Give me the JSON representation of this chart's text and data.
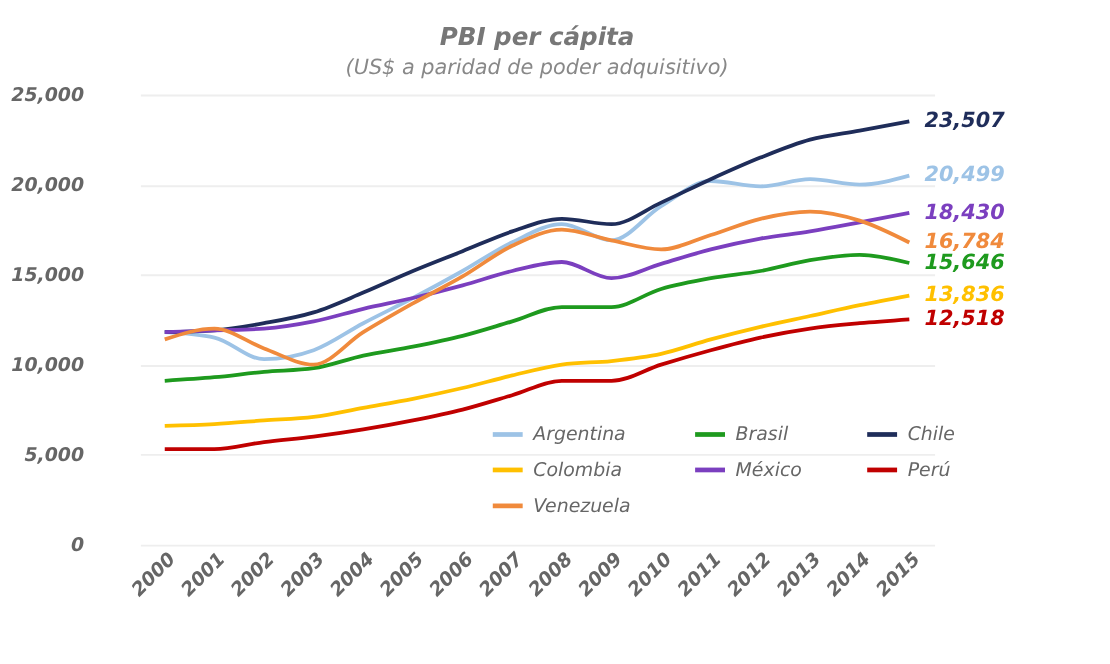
{
  "chart_data": {
    "type": "line",
    "title": "PBI per cápita",
    "subtitle": "(US$ a paridad de poder adquisitivo)",
    "categories": [
      "2000",
      "2001",
      "2002",
      "2003",
      "2004",
      "2005",
      "2006",
      "2007",
      "2008",
      "2009",
      "2010",
      "2011",
      "2012",
      "2013",
      "2014",
      "2015"
    ],
    "series": [
      {
        "name": "Argentina",
        "color": "#9dc3e6",
        "values": [
          11800,
          11500,
          10300,
          10800,
          12300,
          13700,
          15200,
          16800,
          17800,
          16900,
          18800,
          20200,
          19900,
          20300,
          20000,
          20499
        ],
        "value_labels": [
          null,
          null,
          null,
          null,
          null,
          null,
          null,
          null,
          null,
          null,
          null,
          null,
          null,
          null,
          null,
          "20,499"
        ]
      },
      {
        "name": "Brasil",
        "color": "#1e9a1e",
        "values": [
          9100,
          9300,
          9600,
          9800,
          10500,
          11000,
          11600,
          12400,
          13200,
          13200,
          14200,
          14800,
          15200,
          15800,
          16100,
          15646
        ],
        "value_labels": [
          null,
          null,
          null,
          null,
          null,
          null,
          null,
          null,
          null,
          null,
          null,
          null,
          null,
          null,
          null,
          "15,646"
        ]
      },
      {
        "name": "Chile",
        "color": "#1f2d5a",
        "values": [
          11800,
          11900,
          12300,
          12900,
          14000,
          15200,
          16300,
          17400,
          18100,
          17800,
          19000,
          20300,
          21500,
          22500,
          23000,
          23507
        ],
        "value_labels": [
          null,
          null,
          null,
          null,
          null,
          null,
          null,
          null,
          null,
          null,
          null,
          null,
          null,
          null,
          null,
          "23,507"
        ]
      },
      {
        "name": "Colombia",
        "color": "#ffc000",
        "values": [
          6600,
          6700,
          6900,
          7100,
          7600,
          8100,
          8700,
          9400,
          10000,
          10200,
          10600,
          11400,
          12100,
          12700,
          13300,
          13836
        ],
        "value_labels": [
          null,
          null,
          null,
          null,
          null,
          null,
          null,
          null,
          null,
          null,
          null,
          null,
          null,
          null,
          null,
          "13,836"
        ]
      },
      {
        "name": "México",
        "color": "#7b3fbf",
        "values": [
          11800,
          11900,
          12000,
          12400,
          13100,
          13700,
          14400,
          15200,
          15700,
          14800,
          15600,
          16400,
          17000,
          17400,
          17900,
          18430
        ],
        "value_labels": [
          null,
          null,
          null,
          null,
          null,
          null,
          null,
          null,
          null,
          null,
          null,
          null,
          null,
          null,
          null,
          "18,430"
        ]
      },
      {
        "name": "Perú",
        "color": "#c00000",
        "values": [
          5300,
          5300,
          5700,
          6000,
          6400,
          6900,
          7500,
          8300,
          9100,
          9100,
          10000,
          10800,
          11500,
          12000,
          12300,
          12518
        ],
        "value_labels": [
          null,
          null,
          null,
          null,
          null,
          null,
          null,
          null,
          null,
          null,
          null,
          null,
          null,
          null,
          null,
          "12,518"
        ]
      },
      {
        "name": "Venezuela",
        "color": "#f08a3c",
        "values": [
          11400,
          12000,
          10900,
          10000,
          11800,
          13400,
          14900,
          16600,
          17500,
          16900,
          16400,
          17200,
          18100,
          18500,
          18000,
          16784
        ],
        "value_labels": [
          null,
          null,
          null,
          null,
          null,
          null,
          null,
          null,
          null,
          null,
          null,
          null,
          null,
          null,
          null,
          "16,784"
        ]
      }
    ],
    "ylim": [
      0,
      25000
    ],
    "yticks": [
      0,
      {
        "value": 5000,
        "label": "5,000"
      },
      {
        "value": 10000,
        "label": "10,000"
      },
      {
        "value": 15000,
        "label": "15,000"
      },
      {
        "value": 20000,
        "label": "20,000"
      },
      {
        "value": 25000,
        "label": "25,000"
      }
    ],
    "grid": "y",
    "legend": "bottom",
    "marker": "none",
    "line_style": "solid"
  }
}
